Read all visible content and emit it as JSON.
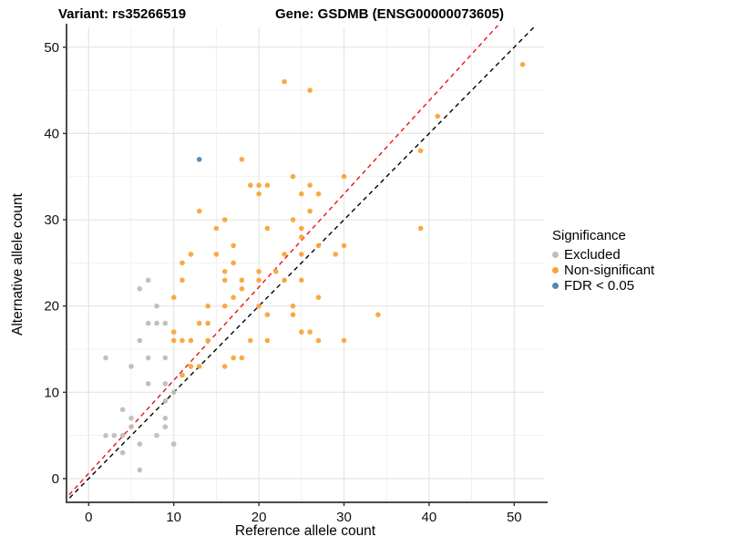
{
  "header": {
    "variant_title": "Variant: rs35266519",
    "gene_title": "Gene: GSDMB (ENSG00000073605)"
  },
  "legend": {
    "title": "Significance",
    "items": [
      {
        "label": "Excluded",
        "color": "#BDBDBD"
      },
      {
        "label": "Non-significant",
        "color": "#FAA43A"
      },
      {
        "label": "FDR < 0.05",
        "color": "#5585B5"
      }
    ]
  },
  "chart_data": {
    "type": "scatter",
    "title": "Variant: rs35266519 — Gene: GSDMB (ENSG00000073605)",
    "xlabel": "Reference allele count",
    "ylabel": "Alternative allele count",
    "xlim": [
      -2.6,
      53.5
    ],
    "ylim": [
      -2.75,
      52.3
    ],
    "x_ticks": [
      0,
      10,
      20,
      30,
      40,
      50
    ],
    "y_ticks": [
      0,
      10,
      20,
      30,
      40,
      50
    ],
    "x_minor_ticks": [
      5,
      15,
      25,
      35,
      45
    ],
    "y_minor_ticks": [
      5,
      15,
      25,
      35,
      45
    ],
    "grid": {
      "major": true,
      "minor": true
    },
    "legend_position": "right",
    "series": [
      {
        "name": "Excluded",
        "color": "#BDBDBD",
        "points": [
          [
            7,
            23
          ],
          [
            6,
            22
          ],
          [
            8,
            20
          ],
          [
            7,
            18
          ],
          [
            8,
            18
          ],
          [
            9,
            18
          ],
          [
            6,
            16
          ],
          [
            2,
            14
          ],
          [
            7,
            14
          ],
          [
            9,
            14
          ],
          [
            5,
            13
          ],
          [
            7,
            11
          ],
          [
            9,
            11
          ],
          [
            10,
            10
          ],
          [
            9,
            9
          ],
          [
            4,
            8
          ],
          [
            5,
            7
          ],
          [
            9,
            7
          ],
          [
            5,
            6
          ],
          [
            9,
            6
          ],
          [
            2,
            5
          ],
          [
            3,
            5
          ],
          [
            4,
            5
          ],
          [
            8,
            5
          ],
          [
            6,
            4
          ],
          [
            10,
            4
          ],
          [
            4,
            3
          ],
          [
            6,
            1
          ]
        ]
      },
      {
        "name": "Non-significant",
        "color": "#FAA43A",
        "points": [
          [
            51,
            48
          ],
          [
            23,
            46
          ],
          [
            26,
            45
          ],
          [
            41,
            42
          ],
          [
            39,
            38
          ],
          [
            18,
            37
          ],
          [
            24,
            35
          ],
          [
            30,
            35
          ],
          [
            19,
            34
          ],
          [
            20,
            34
          ],
          [
            21,
            34
          ],
          [
            26,
            34
          ],
          [
            20,
            33
          ],
          [
            25,
            33
          ],
          [
            27,
            33
          ],
          [
            13,
            31
          ],
          [
            26,
            31
          ],
          [
            16,
            30
          ],
          [
            24,
            30
          ],
          [
            15,
            29
          ],
          [
            21,
            29
          ],
          [
            25,
            29
          ],
          [
            39,
            29
          ],
          [
            25,
            28
          ],
          [
            17,
            27
          ],
          [
            27,
            27
          ],
          [
            30,
            27
          ],
          [
            12,
            26
          ],
          [
            15,
            26
          ],
          [
            23,
            26
          ],
          [
            25,
            26
          ],
          [
            29,
            26
          ],
          [
            11,
            25
          ],
          [
            17,
            25
          ],
          [
            16,
            24
          ],
          [
            20,
            24
          ],
          [
            22,
            24
          ],
          [
            11,
            23
          ],
          [
            16,
            23
          ],
          [
            18,
            23
          ],
          [
            20,
            23
          ],
          [
            23,
            23
          ],
          [
            25,
            23
          ],
          [
            18,
            22
          ],
          [
            10,
            21
          ],
          [
            17,
            21
          ],
          [
            27,
            21
          ],
          [
            14,
            20
          ],
          [
            16,
            20
          ],
          [
            20,
            20
          ],
          [
            24,
            20
          ],
          [
            21,
            19
          ],
          [
            24,
            19
          ],
          [
            34,
            19
          ],
          [
            13,
            18
          ],
          [
            14,
            18
          ],
          [
            10,
            17
          ],
          [
            25,
            17
          ],
          [
            26,
            17
          ],
          [
            10,
            16
          ],
          [
            11,
            16
          ],
          [
            12,
            16
          ],
          [
            14,
            16
          ],
          [
            19,
            16
          ],
          [
            21,
            16
          ],
          [
            27,
            16
          ],
          [
            30,
            16
          ],
          [
            17,
            14
          ],
          [
            18,
            14
          ],
          [
            12,
            13
          ],
          [
            13,
            13
          ],
          [
            16,
            13
          ],
          [
            11,
            12
          ]
        ]
      },
      {
        "name": "FDR < 0.05",
        "color": "#5585B5",
        "points": [
          [
            13,
            37
          ]
        ]
      }
    ],
    "reference_lines": [
      {
        "name": "identity-line",
        "slope": 1,
        "intercept": 0,
        "color": "#000000",
        "style": "dashed"
      },
      {
        "name": "expected-ratio-line",
        "slope": 1.08,
        "intercept": 0.6,
        "color": "#EE1111",
        "style": "dashed"
      }
    ]
  }
}
